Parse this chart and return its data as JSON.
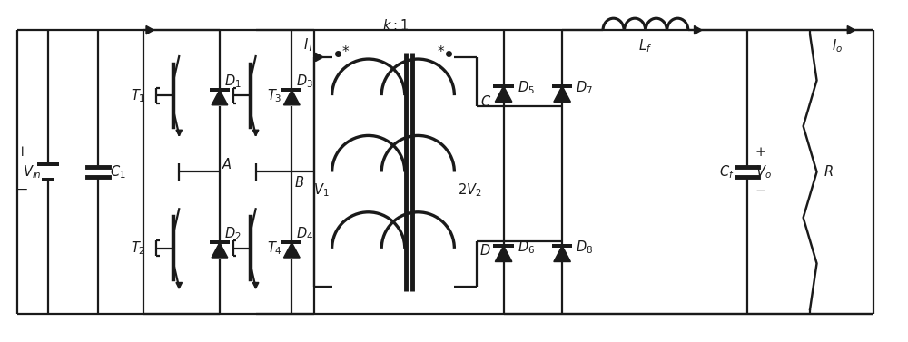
{
  "fig_width": 10.0,
  "fig_height": 3.77,
  "dpi": 100,
  "line_color": "#1a1a1a",
  "line_width": 1.6,
  "bg_color": "#ffffff",
  "font_size": 10.5,
  "title": ""
}
